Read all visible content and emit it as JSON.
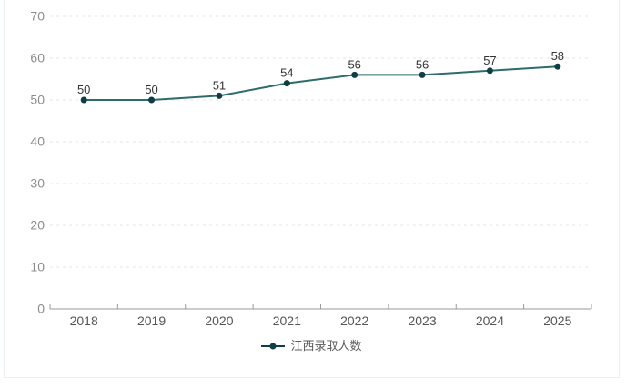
{
  "chart_data": {
    "type": "line",
    "title": "",
    "xlabel": "",
    "ylabel": "",
    "categories": [
      "2018",
      "2019",
      "2020",
      "2021",
      "2022",
      "2023",
      "2024",
      "2025"
    ],
    "series": [
      {
        "name": "江西录取人数",
        "values": [
          50,
          50,
          51,
          54,
          56,
          56,
          57,
          58
        ]
      }
    ],
    "ylim": [
      0,
      70
    ],
    "y_tick_step": 10,
    "y_tick_labels": [
      "0",
      "10",
      "20",
      "30",
      "40",
      "50",
      "60",
      "70"
    ],
    "grid": true,
    "grid_style": "dashed",
    "show_point_labels": true,
    "legend_position": "bottom",
    "colors": {
      "line": "#2e6b6b",
      "point": "#0f3e44",
      "grid_line": "#e4e4e4",
      "axis_line": "#999999",
      "y_tick_label": "#8c8c8c",
      "x_tick_label": "#555555",
      "point_label": "#333333",
      "legend_text": "#595959",
      "card_border": "#e9f1ef",
      "background": "#ffffff"
    }
  }
}
